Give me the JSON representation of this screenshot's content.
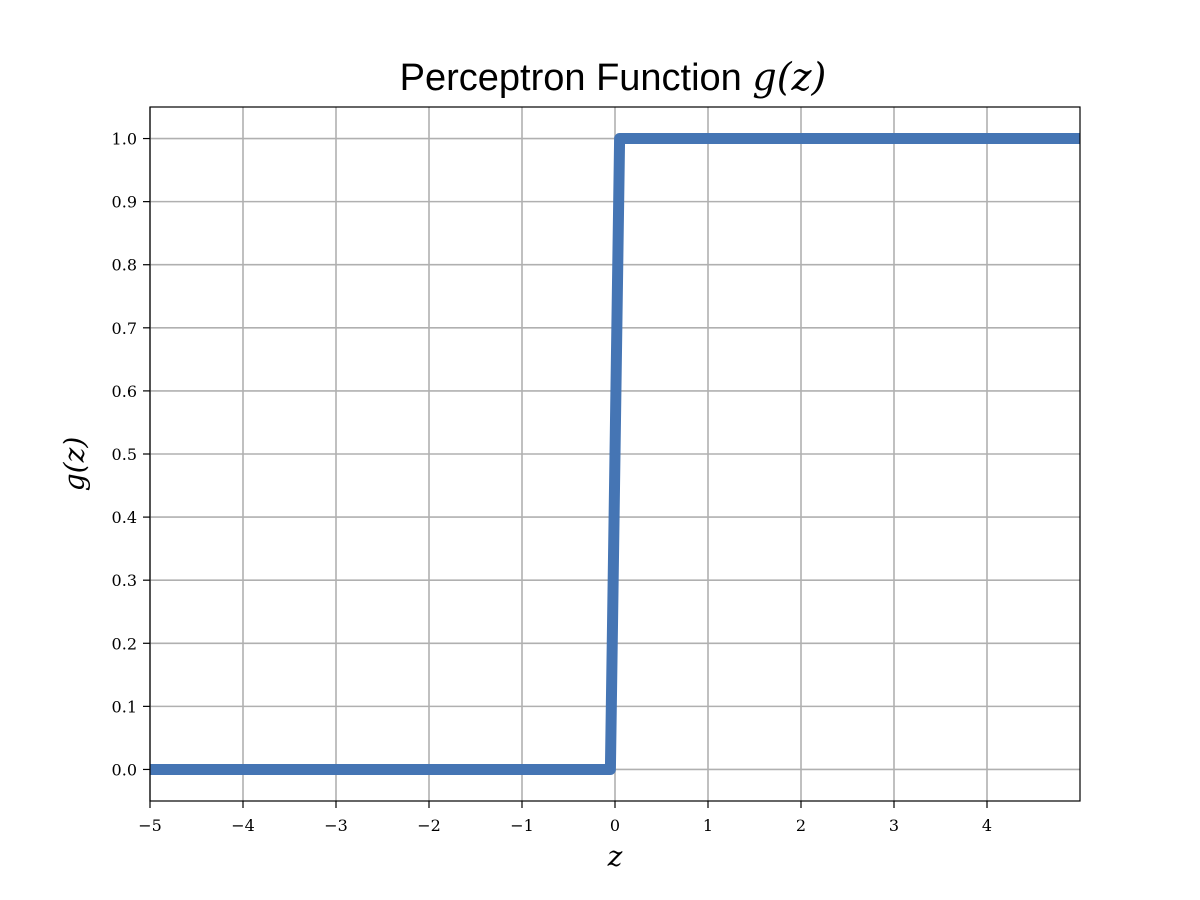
{
  "chart_data": {
    "type": "line",
    "title": "Perceptron Function",
    "title_math": "g(z)",
    "xlabel": "z",
    "ylabel": "g(z)",
    "xlim": [
      -5,
      5
    ],
    "ylim": [
      -0.05,
      1.05
    ],
    "grid": true,
    "x_ticks": [
      -5,
      -4,
      -3,
      -2,
      -1,
      0,
      1,
      2,
      3,
      4
    ],
    "x_tick_labels": [
      "−5",
      "−4",
      "−3",
      "−2",
      "−1",
      "0",
      "1",
      "2",
      "3",
      "4"
    ],
    "y_ticks": [
      0.0,
      0.1,
      0.2,
      0.3,
      0.4,
      0.5,
      0.6,
      0.7,
      0.8,
      0.9,
      1.0
    ],
    "y_tick_labels": [
      "0.0",
      "0.1",
      "0.2",
      "0.3",
      "0.4",
      "0.5",
      "0.6",
      "0.7",
      "0.8",
      "0.9",
      "1.0"
    ],
    "series": [
      {
        "color": "#4575b4",
        "x": [
          -5,
          -0.05,
          0.05,
          5
        ],
        "y": [
          0,
          0,
          1,
          1
        ]
      }
    ]
  }
}
